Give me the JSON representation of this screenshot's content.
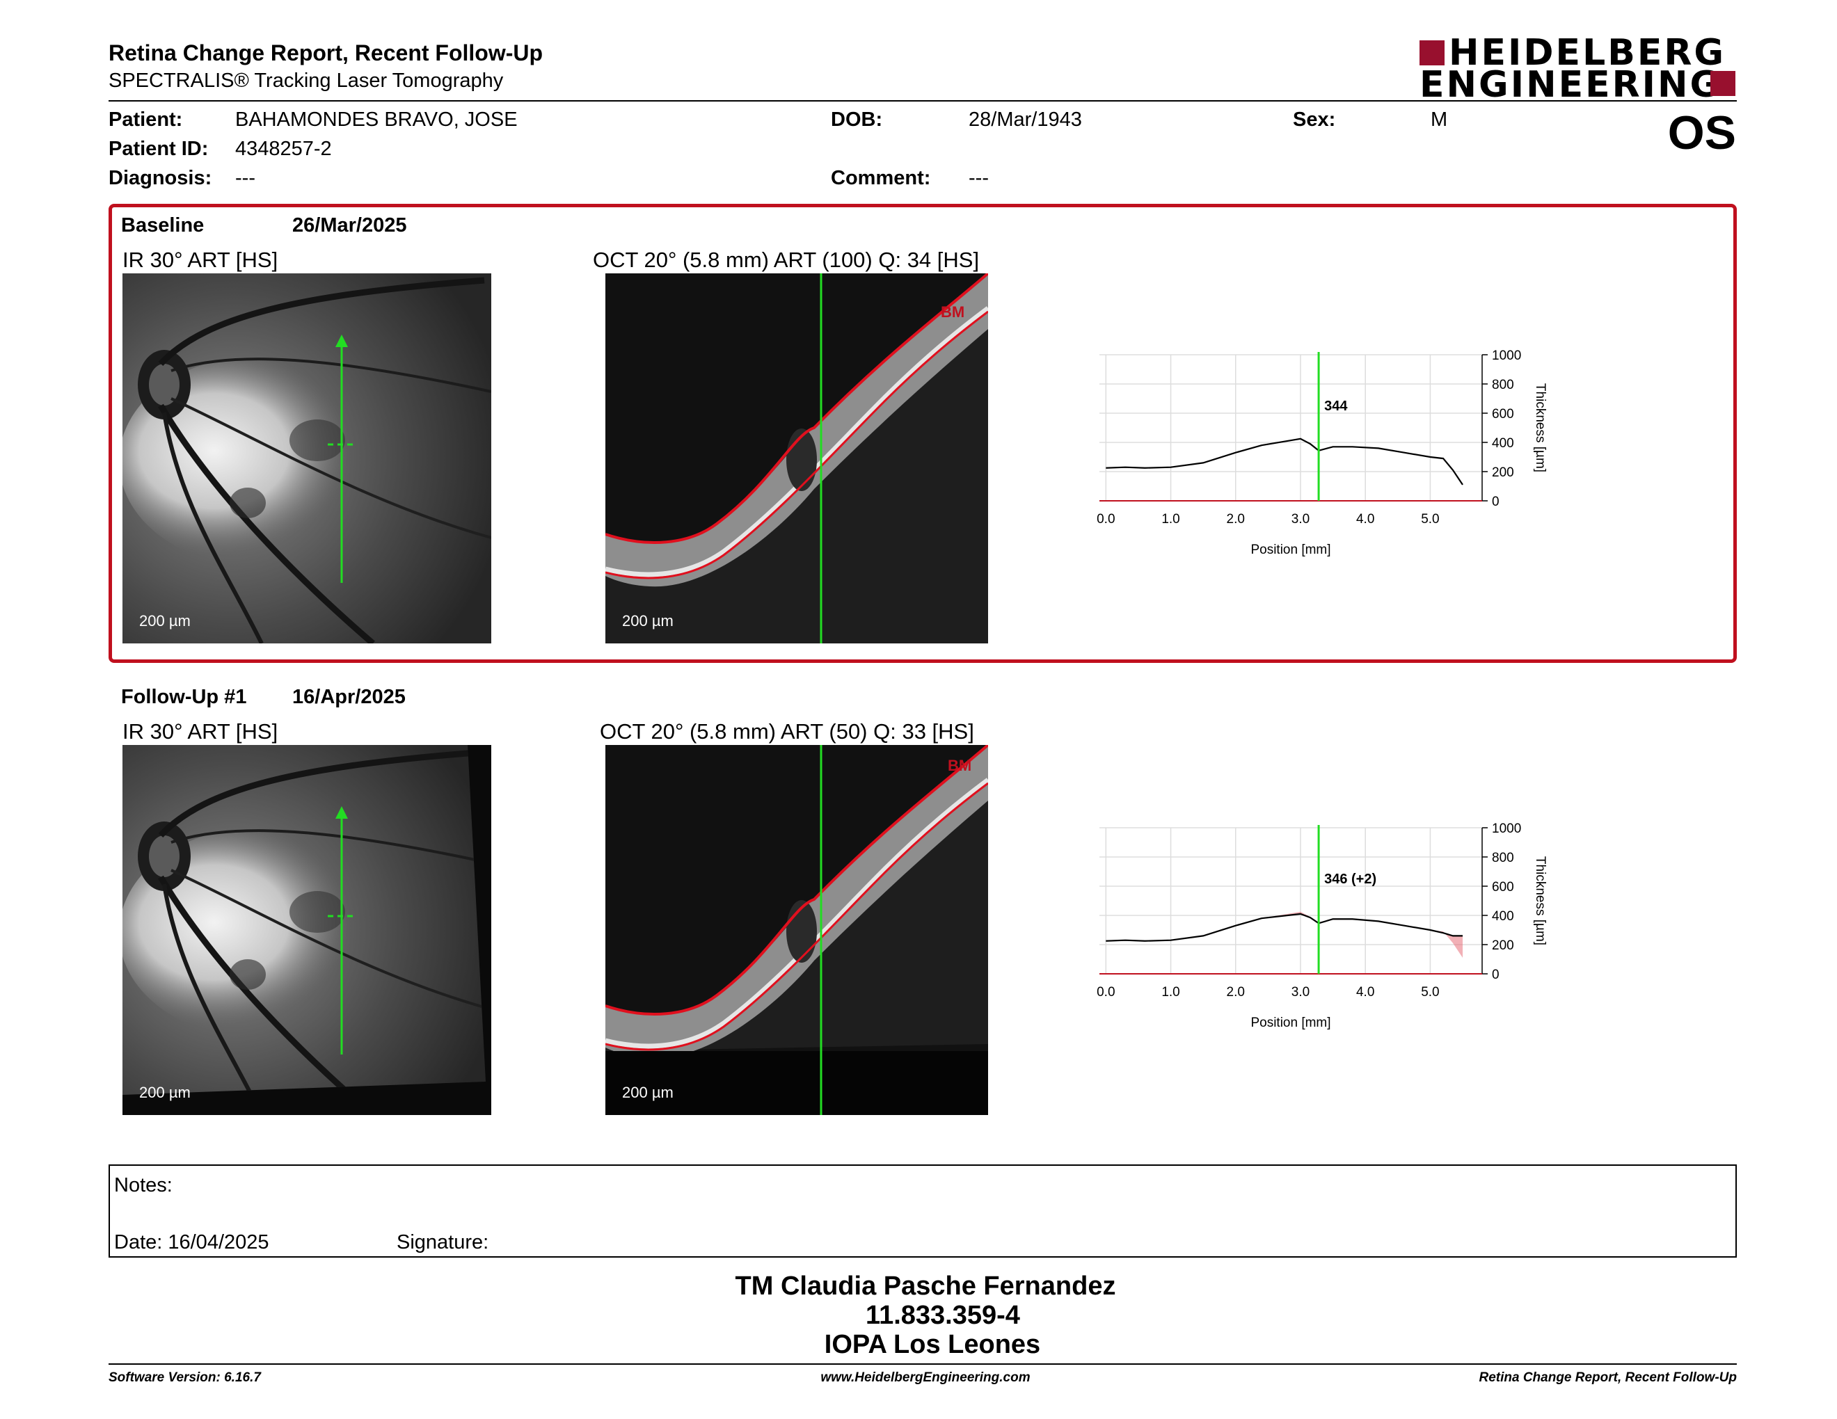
{
  "header": {
    "title": "Retina Change Report, Recent Follow-Up",
    "subtitle": "SPECTRALIS® Tracking Laser Tomography",
    "logo_line1": "HEIDELBERG",
    "logo_line2": "ENGINEERING",
    "eye": "OS"
  },
  "patient": {
    "patient_label": "Patient:",
    "patient_value": "BAHAMONDES BRAVO, JOSE",
    "dob_label": "DOB:",
    "dob_value": "28/Mar/1943",
    "sex_label": "Sex:",
    "sex_value": "M",
    "id_label": "Patient ID:",
    "id_value": "4348257-2",
    "diagnosis_label": "Diagnosis:",
    "diagnosis_value": "---",
    "comment_label": "Comment:",
    "comment_value": "---"
  },
  "baseline": {
    "label": "Baseline",
    "date": "26/Mar/2025",
    "ir_title": "IR 30° ART [HS]",
    "oct_title": "OCT 20° (5.8 mm) ART (100) Q: 34 [HS]",
    "ir_scale": "200 µm",
    "oct_scale": "200 µm",
    "bm_label": "BM"
  },
  "followup": {
    "label": "Follow-Up #1",
    "date": "16/Apr/2025",
    "ir_title": "IR 30° ART [HS]",
    "oct_title": "OCT 20° (5.8 mm) ART (50) Q: 33 [HS]",
    "ir_scale": "200 µm",
    "oct_scale": "200 µm",
    "bm_label": "BM"
  },
  "colors": {
    "accent_red": "#c0101e",
    "logo_red": "#98102e",
    "marker_green": "#22dd22",
    "profile_red": "#e8707a"
  },
  "chart_data": [
    {
      "type": "line",
      "ylabel": "Thickness [µm]",
      "xlabel": "Position [mm]",
      "xlim": [
        -0.1,
        5.8
      ],
      "ylim": [
        0,
        1000
      ],
      "x_ticks": [
        "0.0",
        "1.0",
        "2.0",
        "3.0",
        "4.0",
        "5.0"
      ],
      "y_ticks": [
        "0",
        "200",
        "400",
        "600",
        "800",
        "1000"
      ],
      "grid": true,
      "marker_position": 3.28,
      "marker_label": "344",
      "series": [
        {
          "x": [
            0.0,
            0.3,
            0.6,
            1.0,
            1.5,
            2.0,
            2.4,
            2.8,
            3.0,
            3.15,
            3.28,
            3.5,
            3.8,
            4.2,
            4.6,
            5.0,
            5.2,
            5.35,
            5.5
          ],
          "values": [
            225,
            230,
            225,
            230,
            260,
            330,
            380,
            410,
            425,
            390,
            344,
            370,
            370,
            360,
            330,
            300,
            290,
            210,
            110
          ]
        }
      ]
    },
    {
      "type": "line",
      "ylabel": "Thickness [µm]",
      "xlabel": "Position [mm]",
      "xlim": [
        -0.1,
        5.8
      ],
      "ylim": [
        0,
        1000
      ],
      "x_ticks": [
        "0.0",
        "1.0",
        "2.0",
        "3.0",
        "4.0",
        "5.0"
      ],
      "y_ticks": [
        "0",
        "200",
        "400",
        "600",
        "800",
        "1000"
      ],
      "grid": true,
      "marker_position": 3.28,
      "marker_label": "346 (+2)",
      "series": [
        {
          "x": [
            0.0,
            0.3,
            0.6,
            1.0,
            1.5,
            2.0,
            2.4,
            2.8,
            3.0,
            3.15,
            3.28,
            3.5,
            3.8,
            4.2,
            4.6,
            5.0,
            5.2,
            5.35,
            5.5
          ],
          "values": [
            225,
            230,
            225,
            230,
            260,
            330,
            380,
            400,
            410,
            385,
            346,
            375,
            375,
            360,
            330,
            300,
            280,
            260,
            260
          ]
        }
      ]
    }
  ],
  "notes": {
    "notes_label": "Notes:",
    "date_label": "Date: 16/04/2025",
    "signature_label": "Signature:"
  },
  "signature_block": {
    "name": "TM Claudia Pasche Fernandez",
    "id": "11.833.359-4",
    "institution": "IOPA Los Leones"
  },
  "footer": {
    "software": "Software Version: 6.16.7",
    "website": "www.HeidelbergEngineering.com",
    "report": "Retina Change Report, Recent Follow-Up"
  }
}
